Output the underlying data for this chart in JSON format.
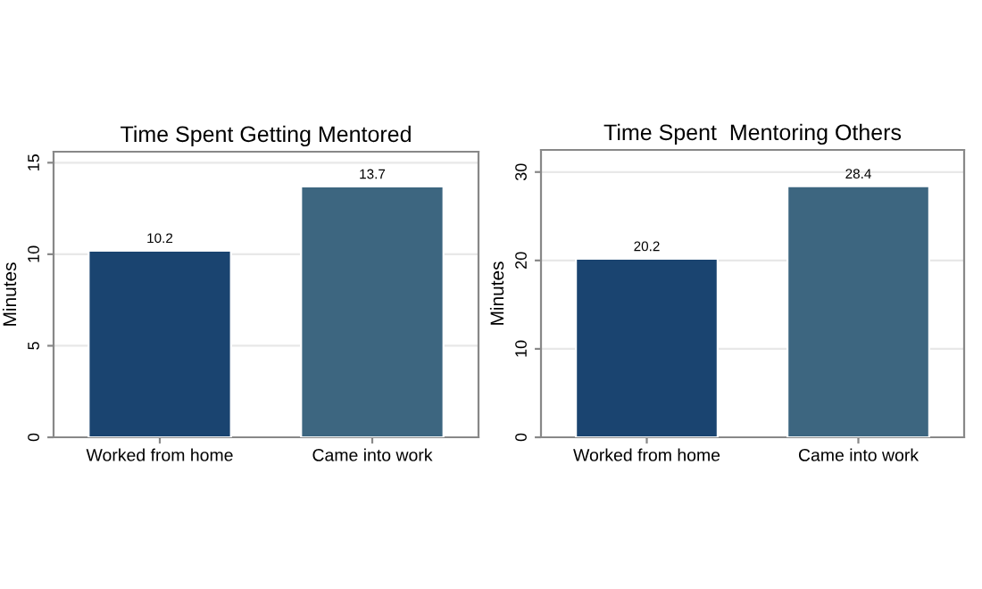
{
  "chart_data": [
    {
      "type": "bar",
      "title": "Time Spent Getting Mentored",
      "ylabel": "Minutes",
      "categories": [
        "Worked from home",
        "Came into work"
      ],
      "values": [
        10.2,
        13.7
      ],
      "colors": [
        "#1a4470",
        "#3d6680"
      ],
      "ylim": [
        0,
        15.6
      ],
      "yticks": [
        0,
        5,
        10,
        15
      ],
      "grid": "y",
      "data_labels": true
    },
    {
      "type": "bar",
      "title": "Time Spent  Mentoring Others",
      "ylabel": "Minutes",
      "categories": [
        "Worked from home",
        "Came into work"
      ],
      "values": [
        20.2,
        28.4
      ],
      "colors": [
        "#1a4470",
        "#3d6680"
      ],
      "ylim": [
        0,
        32.5
      ],
      "yticks": [
        0,
        10,
        20,
        30
      ],
      "grid": "y",
      "data_labels": true
    }
  ]
}
